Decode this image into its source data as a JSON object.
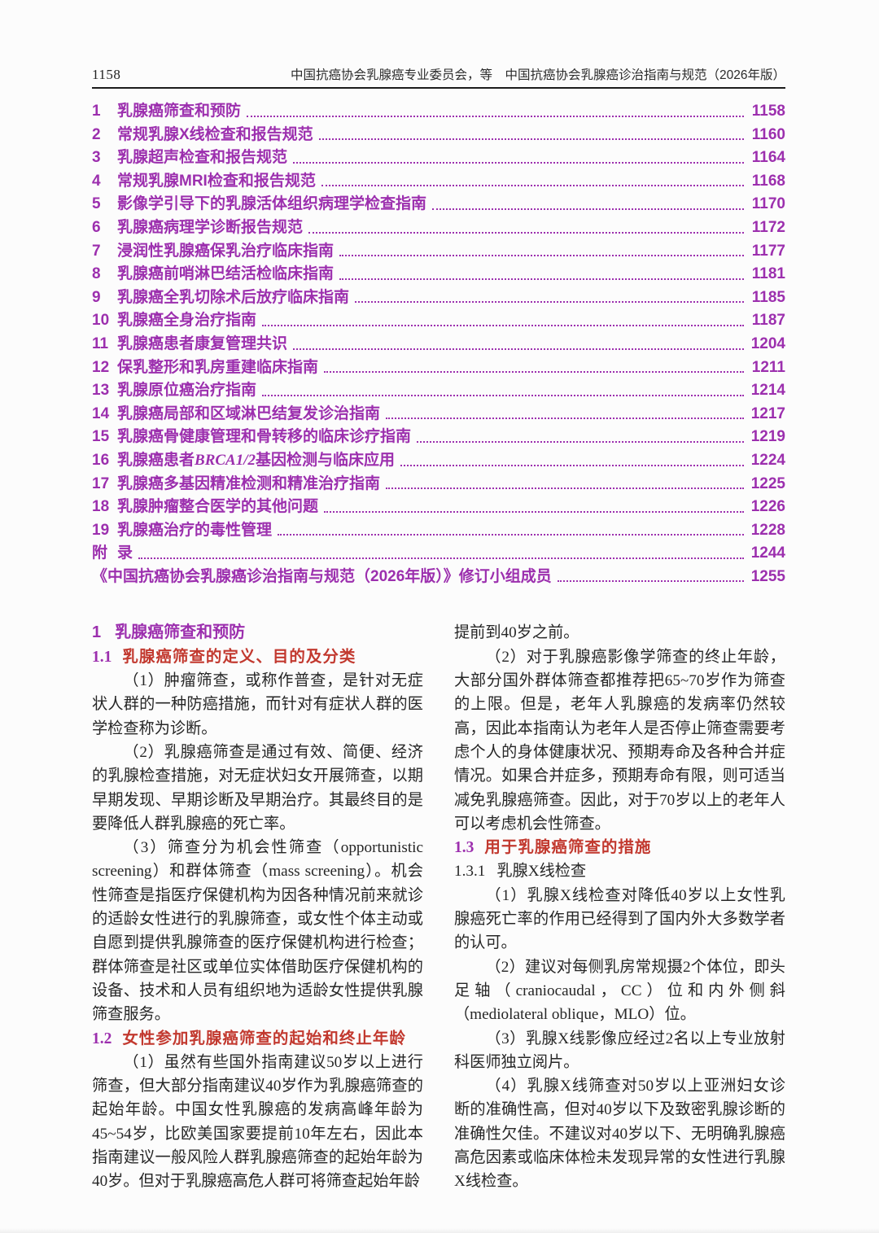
{
  "colors": {
    "toc_purple": "#9c2fae",
    "heading_red": "#c2392f"
  },
  "header": {
    "page_number": "1158",
    "running_title": "中国抗癌协会乳腺癌专业委员会，等　中国抗癌协会乳腺癌诊治指南与规范（2026年版）"
  },
  "toc": {
    "items": [
      {
        "num": "1",
        "title": "乳腺癌筛查和预防",
        "page": "1158"
      },
      {
        "num": "2",
        "title": "常规乳腺X线检查和报告规范",
        "page": "1160"
      },
      {
        "num": "3",
        "title": "乳腺超声检查和报告规范",
        "page": "1164"
      },
      {
        "num": "4",
        "title": "常规乳腺MRI检查和报告规范",
        "page": "1168"
      },
      {
        "num": "5",
        "title": "影像学引导下的乳腺活体组织病理学检查指南",
        "page": "1170"
      },
      {
        "num": "6",
        "title": "乳腺癌病理学诊断报告规范",
        "page": "1172"
      },
      {
        "num": "7",
        "title": "浸润性乳腺癌保乳治疗临床指南",
        "page": "1177"
      },
      {
        "num": "8",
        "title": "乳腺癌前哨淋巴结活检临床指南",
        "page": "1181"
      },
      {
        "num": "9",
        "title": "乳腺癌全乳切除术后放疗临床指南",
        "page": "1185"
      },
      {
        "num": "10",
        "title": "乳腺癌全身治疗指南",
        "page": "1187"
      },
      {
        "num": "11",
        "title": "乳腺癌患者康复管理共识",
        "page": "1204"
      },
      {
        "num": "12",
        "title": "保乳整形和乳房重建临床指南",
        "page": "1211"
      },
      {
        "num": "13",
        "title": "乳腺原位癌治疗指南",
        "page": "1214"
      },
      {
        "num": "14",
        "title": "乳腺癌局部和区域淋巴结复发诊治指南",
        "page": "1217"
      },
      {
        "num": "15",
        "title": "乳腺癌骨健康管理和骨转移的临床诊疗指南",
        "page": "1219"
      },
      {
        "num": "16",
        "title_pre": "乳腺癌患者",
        "title_italic": "BRCA1/2",
        "title_post": "基因检测与临床应用",
        "page": "1224"
      },
      {
        "num": "17",
        "title": "乳腺癌多基因精准检测和精准治疗指南",
        "page": "1225"
      },
      {
        "num": "18",
        "title": "乳腺肿瘤整合医学的其他问题",
        "page": "1226"
      },
      {
        "num": "19",
        "title": "乳腺癌治疗的毒性管理",
        "page": "1228"
      },
      {
        "num": "附",
        "title": "录",
        "page": "1244"
      },
      {
        "num": "",
        "title": "《中国抗癌协会乳腺癌诊治指南与规范（2026年版）》修订小组成员",
        "page": "1255"
      }
    ]
  },
  "body": {
    "left": [
      {
        "type": "h1",
        "num": "1",
        "text": "乳腺癌筛查和预防"
      },
      {
        "type": "h2",
        "num": "1.1",
        "text": "乳腺癌筛查的定义、目的及分类"
      },
      {
        "type": "p",
        "text": "（1）肿瘤筛查，或称作普查，是针对无症状人群的一种防癌措施，而针对有症状人群的医学检查称为诊断。"
      },
      {
        "type": "p",
        "text": "（2）乳腺癌筛查是通过有效、简便、经济的乳腺检查措施，对无症状妇女开展筛查，以期早期发现、早期诊断及早期治疗。其最终目的是要降低人群乳腺癌的死亡率。"
      },
      {
        "type": "p",
        "text": "（3）筛查分为机会性筛查（opportunistic screening）和群体筛查（mass screening）。机会性筛查是指医疗保健机构为因各种情况前来就诊的适龄女性进行的乳腺筛查，或女性个体主动或自愿到提供乳腺筛查的医疗保健机构进行检查；群体筛查是社区或单位实体借助医疗保健机构的设备、技术和人员有组织地为适龄女性提供乳腺筛查服务。"
      },
      {
        "type": "h2",
        "num": "1.2",
        "text": "女性参加乳腺癌筛查的起始和终止年龄"
      },
      {
        "type": "p",
        "text": "（1）虽然有些国外指南建议50岁以上进行筛查，但大部分指南建议40岁作为乳腺癌筛查的起始年龄。中国女性乳腺癌的发病高峰年龄为45~54岁，比欧美国家要提前10年左右，因此本指南建议一般风险人群乳腺癌筛查的起始年龄为40岁。但对于乳腺癌高危人群可将筛查起始年龄"
      }
    ],
    "right": [
      {
        "type": "pc",
        "text": "提前到40岁之前。"
      },
      {
        "type": "p",
        "text": "（2）对于乳腺癌影像学筛查的终止年龄，大部分国外群体筛查都推荐把65~70岁作为筛查的上限。但是，老年人乳腺癌的发病率仍然较高，因此本指南认为老年人是否停止筛查需要考虑个人的身体健康状况、预期寿命及各种合并症情况。如果合并症多，预期寿命有限，则可适当减免乳腺癌筛查。因此，对于70岁以上的老年人可以考虑机会性筛查。"
      },
      {
        "type": "h2",
        "num": "1.3",
        "text": "用于乳腺癌筛查的措施"
      },
      {
        "type": "h3",
        "num": "1.3.1",
        "text": "乳腺X线检查"
      },
      {
        "type": "p",
        "text": "（1）乳腺X线检查对降低40岁以上女性乳腺癌死亡率的作用已经得到了国内外大多数学者的认可。"
      },
      {
        "type": "p",
        "text": "（2）建议对每侧乳房常规摄2个体位，即头足轴（craniocaudal，CC）位和内外侧斜（mediolateral oblique，MLO）位。"
      },
      {
        "type": "p",
        "text": "（3）乳腺X线影像应经过2名以上专业放射科医师独立阅片。"
      },
      {
        "type": "p",
        "text": "（4）乳腺X线筛查对50岁以上亚洲妇女诊断的准确性高，但对40岁以下及致密乳腺诊断的准确性欠佳。不建议对40岁以下、无明确乳腺癌高危因素或临床体检未发现异常的女性进行乳腺X线检查。"
      }
    ]
  }
}
